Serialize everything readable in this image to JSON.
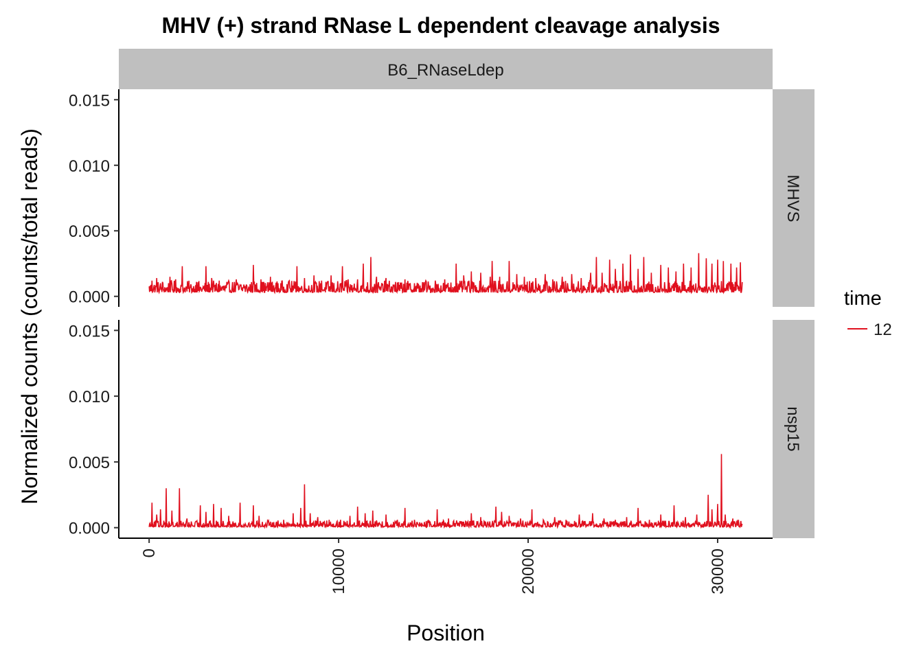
{
  "chart_data": {
    "type": "line",
    "title": "MHV (+) strand RNase L dependent cleavage analysis",
    "xlabel": "Position",
    "ylabel": "Normalized counts (counts/total reads)",
    "xlim": [
      -1600,
      32900
    ],
    "ylim": [
      -0.0008,
      0.0158
    ],
    "x_ticks": [
      0,
      10000,
      20000,
      30000
    ],
    "x_tick_labels": [
      "0",
      "10000",
      "20000",
      "30000"
    ],
    "y_ticks": [
      0,
      0.005,
      0.01,
      0.015
    ],
    "y_tick_labels": [
      "0.000",
      "0.005",
      "0.010",
      "0.015"
    ],
    "column_facets": [
      "B6_RNaseLdep"
    ],
    "row_facets": [
      "MHVS",
      "nsp15"
    ],
    "legend": {
      "title": "time",
      "entries": [
        "12"
      ],
      "position": "right"
    },
    "series_color": "#e0101e",
    "grid": false,
    "series": [
      {
        "facet_row": "MHVS",
        "time": "12",
        "baseline": 0.0003,
        "x_max": 31300,
        "peaks": [
          {
            "x": 150,
            "y": 0.0012
          },
          {
            "x": 400,
            "y": 0.0014
          },
          {
            "x": 700,
            "y": 0.0011
          },
          {
            "x": 1100,
            "y": 0.0015
          },
          {
            "x": 1400,
            "y": 0.0013
          },
          {
            "x": 1750,
            "y": 0.0023
          },
          {
            "x": 2100,
            "y": 0.0008
          },
          {
            "x": 2500,
            "y": 0.0011
          },
          {
            "x": 3000,
            "y": 0.0023
          },
          {
            "x": 3300,
            "y": 0.0014
          },
          {
            "x": 3700,
            "y": 0.0012
          },
          {
            "x": 4100,
            "y": 0.0011
          },
          {
            "x": 4600,
            "y": 0.0013
          },
          {
            "x": 5000,
            "y": 0.0009
          },
          {
            "x": 5500,
            "y": 0.0024
          },
          {
            "x": 5900,
            "y": 0.0013
          },
          {
            "x": 6400,
            "y": 0.0015
          },
          {
            "x": 6800,
            "y": 0.001
          },
          {
            "x": 7400,
            "y": 0.0012
          },
          {
            "x": 7800,
            "y": 0.0023
          },
          {
            "x": 8200,
            "y": 0.0014
          },
          {
            "x": 8700,
            "y": 0.0016
          },
          {
            "x": 9100,
            "y": 0.0012
          },
          {
            "x": 9600,
            "y": 0.0016
          },
          {
            "x": 10200,
            "y": 0.0023
          },
          {
            "x": 10500,
            "y": 0.0013
          },
          {
            "x": 11000,
            "y": 0.0013
          },
          {
            "x": 11300,
            "y": 0.0025
          },
          {
            "x": 11700,
            "y": 0.003
          },
          {
            "x": 12000,
            "y": 0.0015
          },
          {
            "x": 12500,
            "y": 0.0014
          },
          {
            "x": 13000,
            "y": 0.0011
          },
          {
            "x": 13500,
            "y": 0.0013
          },
          {
            "x": 14000,
            "y": 0.001
          },
          {
            "x": 14600,
            "y": 0.0012
          },
          {
            "x": 15100,
            "y": 0.0012
          },
          {
            "x": 15600,
            "y": 0.0013
          },
          {
            "x": 16200,
            "y": 0.0025
          },
          {
            "x": 16600,
            "y": 0.0016
          },
          {
            "x": 17000,
            "y": 0.0019
          },
          {
            "x": 17500,
            "y": 0.0018
          },
          {
            "x": 18000,
            "y": 0.0015
          },
          {
            "x": 18100,
            "y": 0.0027
          },
          {
            "x": 18500,
            "y": 0.0015
          },
          {
            "x": 19000,
            "y": 0.0027
          },
          {
            "x": 19400,
            "y": 0.0017
          },
          {
            "x": 19800,
            "y": 0.0015
          },
          {
            "x": 20400,
            "y": 0.0014
          },
          {
            "x": 20900,
            "y": 0.0017
          },
          {
            "x": 21300,
            "y": 0.0013
          },
          {
            "x": 21800,
            "y": 0.0015
          },
          {
            "x": 22300,
            "y": 0.0017
          },
          {
            "x": 22800,
            "y": 0.0014
          },
          {
            "x": 23300,
            "y": 0.0018
          },
          {
            "x": 23600,
            "y": 0.003
          },
          {
            "x": 23900,
            "y": 0.0018
          },
          {
            "x": 24300,
            "y": 0.0028
          },
          {
            "x": 24600,
            "y": 0.0021
          },
          {
            "x": 25000,
            "y": 0.0025
          },
          {
            "x": 25400,
            "y": 0.0032
          },
          {
            "x": 25800,
            "y": 0.0021
          },
          {
            "x": 26100,
            "y": 0.003
          },
          {
            "x": 26500,
            "y": 0.0018
          },
          {
            "x": 27000,
            "y": 0.0024
          },
          {
            "x": 27400,
            "y": 0.0022
          },
          {
            "x": 27800,
            "y": 0.0019
          },
          {
            "x": 28200,
            "y": 0.0025
          },
          {
            "x": 28600,
            "y": 0.0022
          },
          {
            "x": 29000,
            "y": 0.0033
          },
          {
            "x": 29400,
            "y": 0.0029
          },
          {
            "x": 29700,
            "y": 0.0025
          },
          {
            "x": 30000,
            "y": 0.0028
          },
          {
            "x": 30300,
            "y": 0.0027
          },
          {
            "x": 30700,
            "y": 0.0025
          },
          {
            "x": 31000,
            "y": 0.0022
          },
          {
            "x": 31200,
            "y": 0.0026
          }
        ]
      },
      {
        "facet_row": "nsp15",
        "time": "12",
        "baseline": 5e-05,
        "x_max": 31300,
        "peaks": [
          {
            "x": 150,
            "y": 0.0019
          },
          {
            "x": 400,
            "y": 0.001
          },
          {
            "x": 600,
            "y": 0.0014
          },
          {
            "x": 900,
            "y": 0.003
          },
          {
            "x": 1200,
            "y": 0.0013
          },
          {
            "x": 1600,
            "y": 0.003
          },
          {
            "x": 2000,
            "y": 0.0007
          },
          {
            "x": 2700,
            "y": 0.0017
          },
          {
            "x": 3000,
            "y": 0.0012
          },
          {
            "x": 3400,
            "y": 0.0018
          },
          {
            "x": 3800,
            "y": 0.0015
          },
          {
            "x": 4200,
            "y": 0.0009
          },
          {
            "x": 4800,
            "y": 0.0019
          },
          {
            "x": 5500,
            "y": 0.0017
          },
          {
            "x": 5800,
            "y": 0.0009
          },
          {
            "x": 6500,
            "y": 0.0004
          },
          {
            "x": 7100,
            "y": 0.0006
          },
          {
            "x": 7600,
            "y": 0.0011
          },
          {
            "x": 8000,
            "y": 0.0015
          },
          {
            "x": 8200,
            "y": 0.0033
          },
          {
            "x": 8500,
            "y": 0.0011
          },
          {
            "x": 8900,
            "y": 0.0008
          },
          {
            "x": 9500,
            "y": 0.0006
          },
          {
            "x": 10100,
            "y": 0.0006
          },
          {
            "x": 10600,
            "y": 0.0009
          },
          {
            "x": 11000,
            "y": 0.0016
          },
          {
            "x": 11400,
            "y": 0.0011
          },
          {
            "x": 11800,
            "y": 0.0013
          },
          {
            "x": 12500,
            "y": 0.001
          },
          {
            "x": 13100,
            "y": 0.0006
          },
          {
            "x": 13500,
            "y": 0.0015
          },
          {
            "x": 14000,
            "y": 0.0006
          },
          {
            "x": 14700,
            "y": 0.0005
          },
          {
            "x": 15200,
            "y": 0.0014
          },
          {
            "x": 15800,
            "y": 0.0007
          },
          {
            "x": 16400,
            "y": 0.0005
          },
          {
            "x": 17000,
            "y": 0.0011
          },
          {
            "x": 17500,
            "y": 0.0008
          },
          {
            "x": 18300,
            "y": 0.0016
          },
          {
            "x": 18600,
            "y": 0.0012
          },
          {
            "x": 19000,
            "y": 0.0009
          },
          {
            "x": 19600,
            "y": 0.0007
          },
          {
            "x": 20200,
            "y": 0.0014
          },
          {
            "x": 20800,
            "y": 0.0006
          },
          {
            "x": 21400,
            "y": 0.0008
          },
          {
            "x": 22000,
            "y": 0.0006
          },
          {
            "x": 22700,
            "y": 0.001
          },
          {
            "x": 23400,
            "y": 0.0011
          },
          {
            "x": 24000,
            "y": 0.0007
          },
          {
            "x": 24600,
            "y": 0.0006
          },
          {
            "x": 25200,
            "y": 0.0008
          },
          {
            "x": 25800,
            "y": 0.0015
          },
          {
            "x": 26400,
            "y": 0.0006
          },
          {
            "x": 27000,
            "y": 0.001
          },
          {
            "x": 27700,
            "y": 0.0017
          },
          {
            "x": 28300,
            "y": 0.0008
          },
          {
            "x": 28900,
            "y": 0.001
          },
          {
            "x": 29500,
            "y": 0.0025
          },
          {
            "x": 29700,
            "y": 0.0014
          },
          {
            "x": 30000,
            "y": 0.0018
          },
          {
            "x": 30200,
            "y": 0.0056
          },
          {
            "x": 30400,
            "y": 0.001
          },
          {
            "x": 30800,
            "y": 0.0007
          },
          {
            "x": 31100,
            "y": 0.0006
          }
        ]
      }
    ]
  }
}
